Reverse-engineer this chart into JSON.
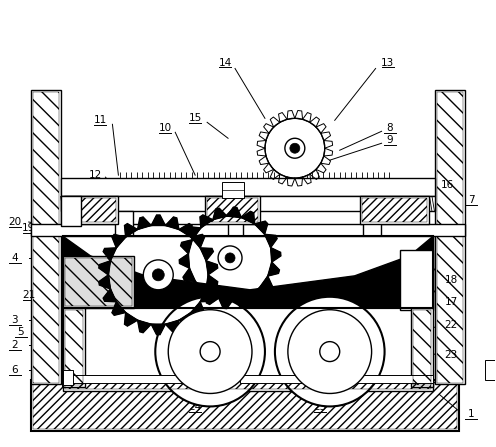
{
  "background_color": "#ffffff",
  "line_color": "#000000",
  "fig_width": 4.96,
  "fig_height": 4.47,
  "dpi": 100
}
